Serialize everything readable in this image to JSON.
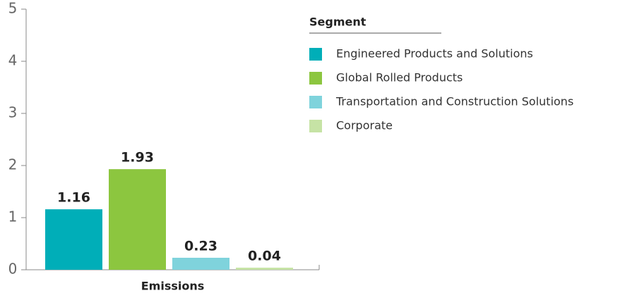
{
  "chart_data": {
    "type": "bar",
    "categories": [
      "Emissions"
    ],
    "legend_title": "Segment",
    "series": [
      {
        "name": "Engineered Products and Solutions",
        "color": "#00aeb8",
        "values": [
          1.16
        ]
      },
      {
        "name": "Global Rolled Products",
        "color": "#8cc63f",
        "values": [
          1.93
        ]
      },
      {
        "name": "Transportation and Construction Solutions",
        "color": "#7fd3dc",
        "values": [
          0.23
        ]
      },
      {
        "name": "Corporate",
        "color": "#c6e3a5",
        "values": [
          0.04
        ]
      }
    ],
    "ylim": [
      0,
      5
    ],
    "yticks": [
      0,
      1,
      2,
      3,
      4,
      5
    ],
    "legend": "right"
  }
}
